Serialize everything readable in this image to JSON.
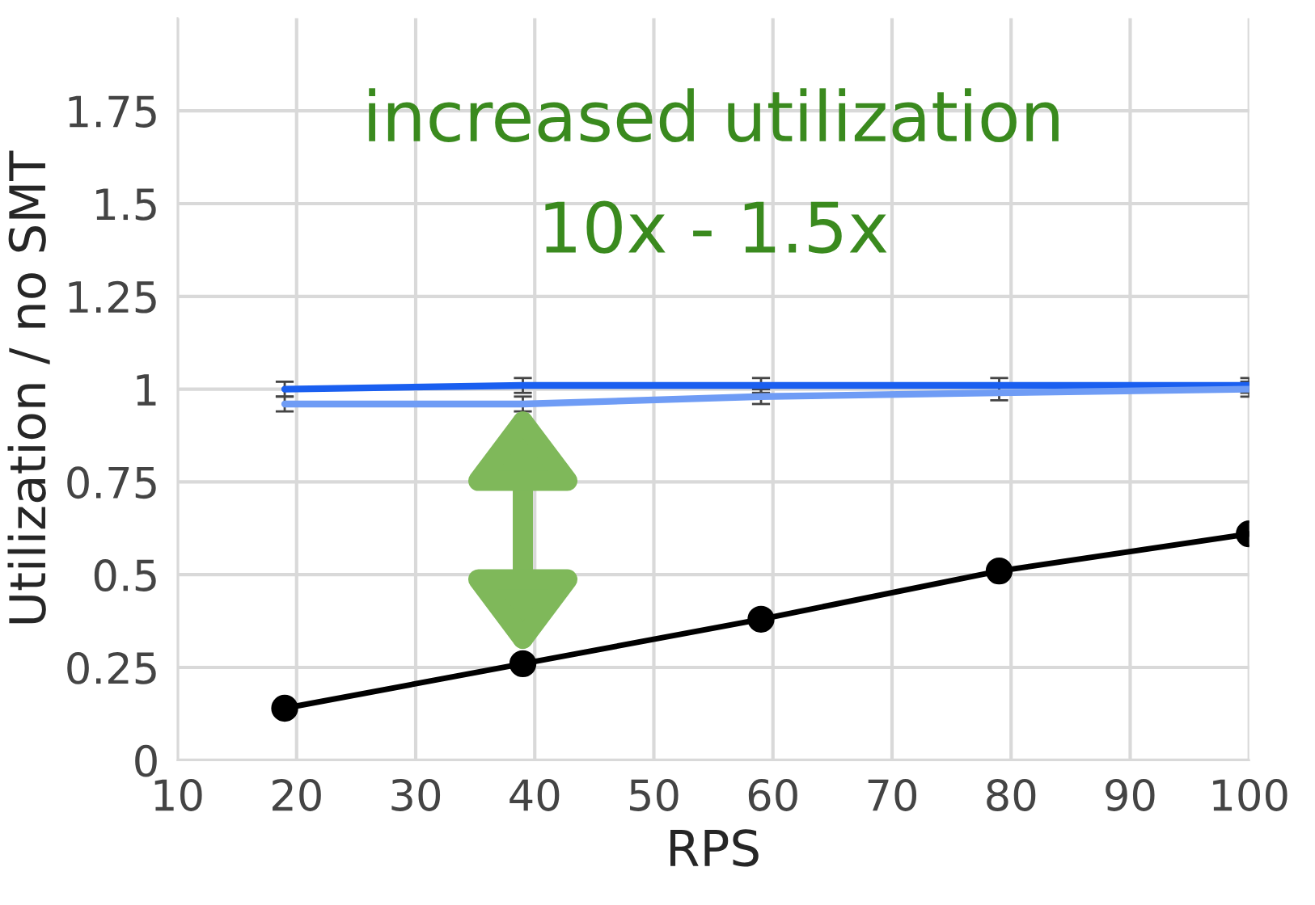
{
  "chart_data": {
    "type": "line",
    "xlabel": "RPS",
    "ylabel": "Utilization / no SMT",
    "xlim": [
      10,
      100
    ],
    "xticks": [
      10,
      20,
      30,
      40,
      50,
      60,
      70,
      80,
      90,
      100
    ],
    "ylim": [
      0,
      2
    ],
    "yticks": [
      0,
      0.25,
      0.5,
      0.75,
      1,
      1.25,
      1.5,
      1.75
    ],
    "grid": true,
    "marker": "circle",
    "line_style": "solid",
    "series": [
      {
        "color": "#1a5ff0",
        "x": [
          19,
          39,
          59,
          79,
          100
        ],
        "values": [
          1.0,
          1.01,
          1.01,
          1.01,
          1.01
        ],
        "errors": [
          0.02,
          0.02,
          0.02,
          0.02,
          0.02
        ],
        "marker": "none"
      },
      {
        "color": "#6f9cf5",
        "x": [
          19,
          39,
          59,
          79,
          100
        ],
        "values": [
          0.96,
          0.96,
          0.98,
          0.99,
          1.0
        ],
        "errors": [
          0.02,
          0.02,
          0.02,
          0.02,
          0.02
        ],
        "marker": "none"
      },
      {
        "color": "#000000",
        "x": [
          19,
          39,
          59,
          79,
          100
        ],
        "values": [
          0.14,
          0.26,
          0.38,
          0.51,
          0.61
        ]
      }
    ],
    "annotations": [
      "increased utilization",
      "10x - 1.5x"
    ]
  }
}
